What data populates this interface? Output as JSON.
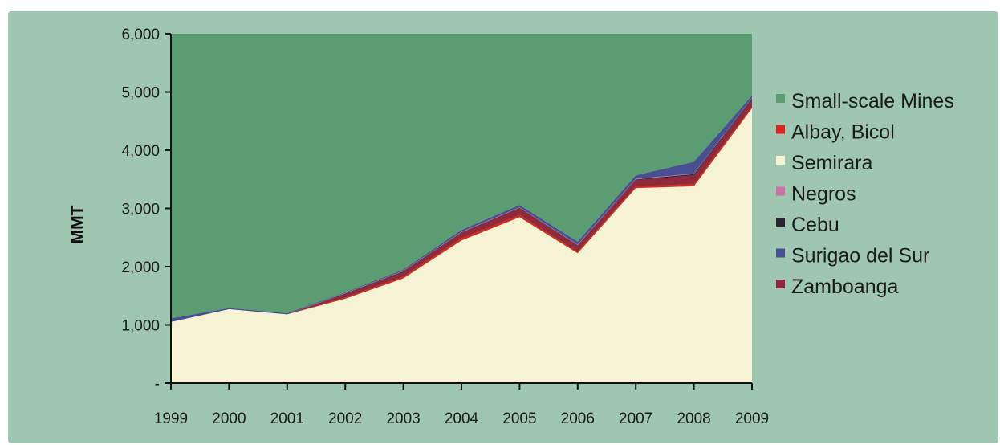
{
  "chart_data": {
    "type": "area",
    "stacked": true,
    "ylabel": "MMT",
    "xlabel": "",
    "title": "",
    "ylim": [
      0,
      6000
    ],
    "yticks": [
      {
        "value": 0,
        "label": "-"
      },
      {
        "value": 1000,
        "label": "1,000"
      },
      {
        "value": 2000,
        "label": "2,000"
      },
      {
        "value": 3000,
        "label": "3,000"
      },
      {
        "value": 4000,
        "label": "4,000"
      },
      {
        "value": 5000,
        "label": "5,000"
      },
      {
        "value": 6000,
        "label": "6,000"
      }
    ],
    "categories": [
      "1999",
      "2000",
      "2001",
      "2002",
      "2003",
      "2004",
      "2005",
      "2006",
      "2007",
      "2008",
      "2009"
    ],
    "legend_position": "right",
    "series": [
      {
        "name": "Semirara",
        "color": "#f6f3d4",
        "values": [
          1050,
          1270,
          1180,
          1450,
          1800,
          2450,
          2850,
          2230,
          3350,
          3380,
          4720
        ]
      },
      {
        "name": "Albay, Bicol",
        "color": "#d42a1e",
        "values": [
          0,
          0,
          0,
          20,
          30,
          40,
          40,
          30,
          30,
          40,
          30
        ]
      },
      {
        "name": "Zamboanga",
        "color": "#8e2a3b",
        "values": [
          0,
          0,
          0,
          60,
          80,
          90,
          110,
          100,
          110,
          150,
          120
        ]
      },
      {
        "name": "Cebu",
        "color": "#2a2530",
        "values": [
          0,
          0,
          0,
          10,
          10,
          10,
          10,
          10,
          10,
          20,
          20
        ]
      },
      {
        "name": "Negros",
        "color": "#c774a4",
        "values": [
          0,
          0,
          0,
          10,
          10,
          10,
          10,
          10,
          10,
          10,
          10
        ]
      },
      {
        "name": "Surigao del Sur",
        "color": "#4a4f93",
        "values": [
          60,
          20,
          20,
          10,
          20,
          30,
          40,
          50,
          60,
          200,
          40
        ]
      },
      {
        "name": "Small-scale Mines",
        "color": "#5c9c72",
        "values": [
          4890,
          4710,
          4800,
          4440,
          4050,
          3370,
          2940,
          3570,
          2430,
          2200,
          1060
        ]
      }
    ],
    "legend_order": [
      "Small-scale Mines",
      "Albay, Bicol",
      "Semirara",
      "Negros",
      "Cebu",
      "Surigao del Sur",
      "Zamboanga"
    ]
  }
}
